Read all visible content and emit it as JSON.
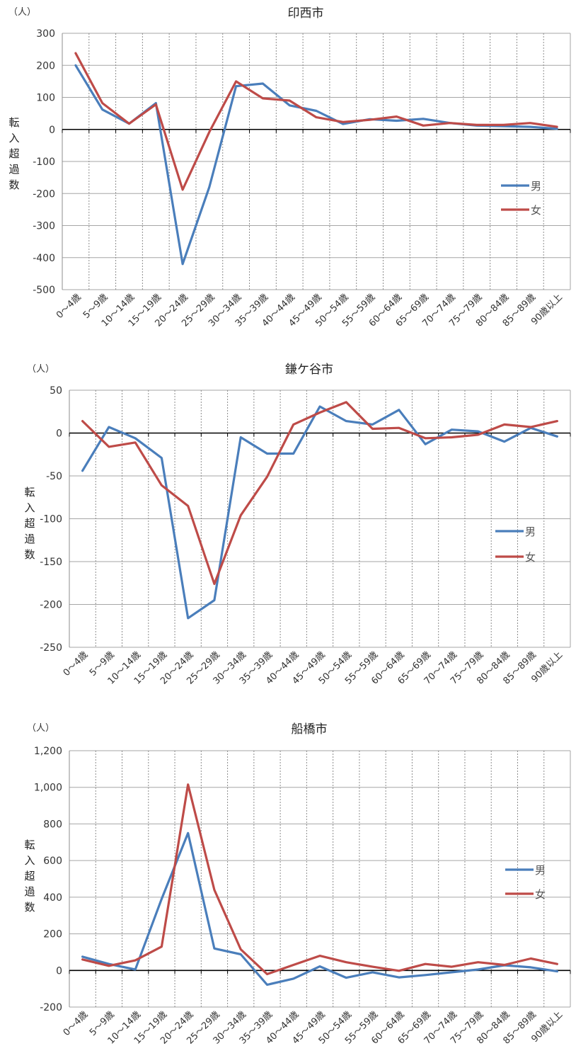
{
  "chart_data": [
    {
      "type": "line",
      "title": "印西市",
      "unit_label": "（人）",
      "ylabel": "転入超過数",
      "categories": [
        "0～4歳",
        "5～9歳",
        "10～14歳",
        "15～19歳",
        "20～24歳",
        "25～29歳",
        "30～34歳",
        "35～39歳",
        "40～44歳",
        "45～49歳",
        "50～54歳",
        "55～59歳",
        "60～64歳",
        "65～69歳",
        "70～74歳",
        "75～79歳",
        "80～84歳",
        "85～89歳",
        "90歳以上"
      ],
      "yticks": [
        300,
        200,
        100,
        0,
        -100,
        -200,
        -300,
        -400,
        -500
      ],
      "ytick_labels": [
        "300",
        "200",
        "100",
        "0",
        "-100",
        "-200",
        "-300",
        "-400",
        "-500"
      ],
      "ylim": [
        -500,
        300
      ],
      "legend_placement": "right",
      "series": [
        {
          "name": "男",
          "color": "#4a7ebb",
          "values": [
            200,
            62,
            18,
            82,
            -420,
            -180,
            135,
            143,
            75,
            58,
            17,
            32,
            27,
            33,
            20,
            12,
            10,
            8,
            2
          ]
        },
        {
          "name": "女",
          "color": "#be4b48",
          "values": [
            238,
            82,
            18,
            78,
            -188,
            -8,
            150,
            97,
            90,
            38,
            23,
            30,
            40,
            12,
            20,
            14,
            14,
            20,
            8
          ]
        }
      ]
    },
    {
      "type": "line",
      "title": "鎌ケ谷市",
      "unit_label": "（人）",
      "ylabel": "転入超過数",
      "categories": [
        "0～4歳",
        "5～9歳",
        "10～14歳",
        "15～19歳",
        "20～24歳",
        "25～29歳",
        "30～34歳",
        "35～39歳",
        "40～44歳",
        "45～49歳",
        "50～54歳",
        "55～59歳",
        "60～64歳",
        "65～69歳",
        "70～74歳",
        "75～79歳",
        "80～84歳",
        "85～89歳",
        "90歳以上"
      ],
      "yticks": [
        50,
        0,
        -50,
        -100,
        -150,
        -200,
        -250
      ],
      "ytick_labels": [
        "50",
        "0",
        "-50",
        "-100",
        "-150",
        "-200",
        "-250"
      ],
      "ylim": [
        -250,
        50
      ],
      "legend_placement": "right",
      "series": [
        {
          "name": "男",
          "color": "#4a7ebb",
          "values": [
            -44,
            7,
            -6,
            -29,
            -216,
            -195,
            -5,
            -24,
            -24,
            31,
            14,
            10,
            27,
            -13,
            4,
            2,
            -10,
            6,
            -4
          ]
        },
        {
          "name": "女",
          "color": "#be4b48",
          "values": [
            14,
            -16,
            -11,
            -61,
            -85,
            -176,
            -96,
            -51,
            10,
            24,
            36,
            5,
            6,
            -6,
            -5,
            -2,
            10,
            7,
            14
          ]
        }
      ]
    },
    {
      "type": "line",
      "title": "船橋市",
      "unit_label": "（人）",
      "ylabel": "転入超過数",
      "categories": [
        "0～4歳",
        "5～9歳",
        "10～14歳",
        "15～19歳",
        "20～24歳",
        "25～29歳",
        "30～34歳",
        "35～39歳",
        "40～44歳",
        "45～49歳",
        "50～54歳",
        "55～59歳",
        "60～64歳",
        "65～69歳",
        "70～74歳",
        "75～79歳",
        "80～84歳",
        "85～89歳",
        "90歳以上"
      ],
      "yticks": [
        1200,
        1000,
        800,
        600,
        400,
        200,
        0,
        -200
      ],
      "ytick_labels": [
        "1,200",
        "1,000",
        "800",
        "600",
        "400",
        "200",
        "0",
        "-200"
      ],
      "ylim": [
        -200,
        1200
      ],
      "legend_placement": "right",
      "series": [
        {
          "name": "男",
          "color": "#4a7ebb",
          "values": [
            75,
            35,
            5,
            390,
            750,
            120,
            88,
            -78,
            -45,
            22,
            -40,
            -10,
            -38,
            -25,
            -10,
            5,
            28,
            17,
            -5
          ]
        },
        {
          "name": "女",
          "color": "#be4b48",
          "values": [
            60,
            25,
            55,
            130,
            1015,
            440,
            115,
            -20,
            30,
            80,
            45,
            20,
            -2,
            35,
            20,
            45,
            30,
            65,
            35
          ]
        }
      ]
    }
  ]
}
